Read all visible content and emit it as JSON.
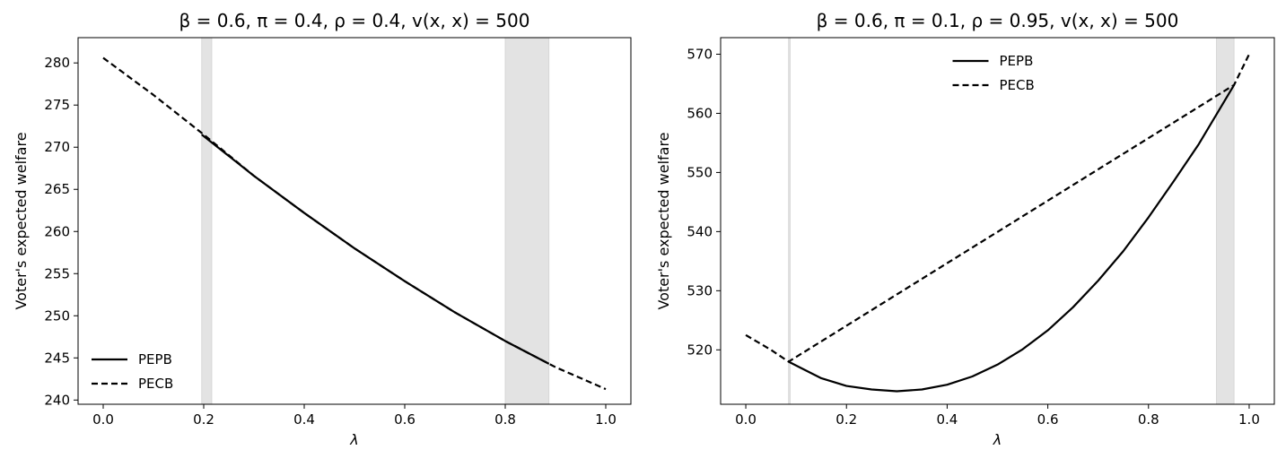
{
  "chart_data": [
    {
      "type": "line",
      "title": "β = 0.6, π = 0.4, ρ = 0.4, v(x, x) = 500",
      "xlabel": "λ",
      "ylabel": "Voter's expected welfare",
      "xlim": [
        -0.05,
        1.05
      ],
      "ylim": [
        239.5,
        283.0
      ],
      "xticks": [
        "0.0",
        "0.2",
        "0.4",
        "0.6",
        "0.8",
        "1.0"
      ],
      "yticks": [
        "240",
        "245",
        "250",
        "255",
        "260",
        "265",
        "270",
        "275",
        "280"
      ],
      "legend": {
        "placement": "lower-left",
        "entries": [
          "PEPB",
          "PECB"
        ]
      },
      "shaded_regions": [
        [
          0.196,
          0.216
        ],
        [
          0.8,
          0.887
        ]
      ],
      "series": [
        {
          "name": "PEPB",
          "style": "solid",
          "x": [
            0.196,
            0.3,
            0.4,
            0.5,
            0.6,
            0.7,
            0.8,
            0.887
          ],
          "y": [
            271.5,
            266.6,
            262.2,
            258.0,
            254.1,
            250.4,
            247.0,
            244.3
          ]
        },
        {
          "name": "PECB",
          "style": "dashed",
          "x": [
            0.0,
            0.1,
            0.2,
            0.3,
            0.4,
            0.5,
            0.6,
            0.7,
            0.8,
            0.9,
            1.0
          ],
          "y": [
            280.6,
            276.2,
            271.5,
            266.6,
            262.2,
            258.0,
            254.1,
            250.4,
            247.0,
            243.9,
            241.3
          ]
        }
      ]
    },
    {
      "type": "line",
      "title": "β = 0.6, π = 0.1, ρ = 0.95, v(x, x) = 500",
      "xlabel": "λ",
      "ylabel": "Voter's expected welfare",
      "xlim": [
        -0.05,
        1.05
      ],
      "ylim": [
        510.8,
        572.8
      ],
      "xticks": [
        "0.0",
        "0.2",
        "0.4",
        "0.6",
        "0.8",
        "1.0"
      ],
      "yticks": [
        "520",
        "530",
        "540",
        "550",
        "560",
        "570"
      ],
      "legend": {
        "placement": "upper-center",
        "entries": [
          "PEPB",
          "PECB"
        ]
      },
      "shaded_regions": [
        [
          0.085,
          0.088
        ],
        [
          0.935,
          0.97
        ]
      ],
      "series": [
        {
          "name": "PEPB",
          "style": "solid",
          "x": [
            0.085,
            0.15,
            0.2,
            0.25,
            0.3,
            0.35,
            0.4,
            0.45,
            0.5,
            0.55,
            0.6,
            0.65,
            0.7,
            0.75,
            0.8,
            0.85,
            0.9,
            0.97
          ],
          "y": [
            518.0,
            515.2,
            513.9,
            513.3,
            513.0,
            513.3,
            514.1,
            515.5,
            517.5,
            520.1,
            523.3,
            527.2,
            531.7,
            536.7,
            542.4,
            548.5,
            554.8,
            564.8
          ]
        },
        {
          "name": "PECB",
          "style": "dashed",
          "x": [
            0.0,
            0.05,
            0.085,
            0.97,
            1.0
          ],
          "y": [
            522.5,
            520.0,
            518.0,
            564.8,
            570.0
          ]
        }
      ]
    }
  ]
}
